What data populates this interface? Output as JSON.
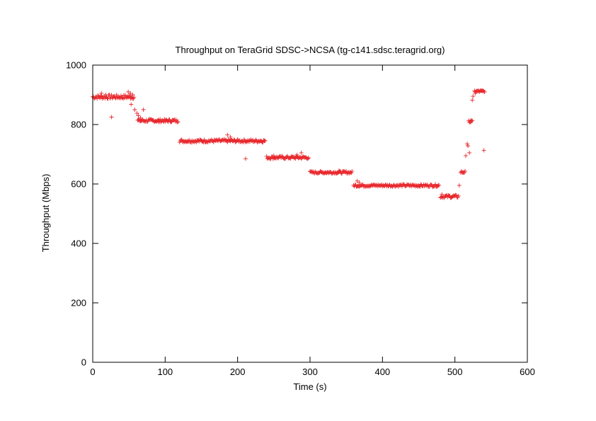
{
  "chart_data": {
    "type": "scatter",
    "title": "Throughput on TeraGrid SDSC->NCSA (tg-c141.sdsc.teragrid.org)",
    "xlabel": "Time (s)",
    "ylabel": "Throughput (Mbps)",
    "xlim": [
      0,
      600
    ],
    "ylim": [
      0,
      1000
    ],
    "xticks": [
      0,
      100,
      200,
      300,
      400,
      500,
      600
    ],
    "yticks": [
      0,
      200,
      400,
      600,
      800,
      1000
    ],
    "grid": false,
    "legend": "none",
    "marker": "+",
    "color": "#e8262b",
    "series": [
      {
        "segments": [
          {
            "x_start": 0,
            "x_end": 57,
            "step": 1,
            "y": 893,
            "jitter": 7
          },
          {
            "x_start": 62,
            "x_end": 118,
            "step": 1,
            "y": 813,
            "jitter": 5
          },
          {
            "x_start": 120,
            "x_end": 238,
            "step": 1,
            "y": 745,
            "jitter": 5
          },
          {
            "x_start": 240,
            "x_end": 298,
            "step": 1,
            "y": 689,
            "jitter": 5
          },
          {
            "x_start": 300,
            "x_end": 358,
            "step": 1,
            "y": 639,
            "jitter": 4
          },
          {
            "x_start": 360,
            "x_end": 478,
            "step": 1,
            "y": 595,
            "jitter": 4
          },
          {
            "x_start": 480,
            "x_end": 505,
            "step": 1,
            "y": 558,
            "jitter": 5
          },
          {
            "x_start": 508,
            "x_end": 514,
            "step": 1,
            "y": 640,
            "jitter": 4
          },
          {
            "x_start": 519,
            "x_end": 524,
            "step": 1,
            "y": 810,
            "jitter": 3
          },
          {
            "x_start": 527,
            "x_end": 541,
            "step": 1,
            "y": 912,
            "jitter": 3
          }
        ],
        "points": [
          [
            12,
            905
          ],
          [
            18,
            900
          ],
          [
            26,
            825
          ],
          [
            49,
            910
          ],
          [
            52,
            905
          ],
          [
            55,
            900
          ],
          [
            53,
            868
          ],
          [
            58,
            850
          ],
          [
            61,
            838
          ],
          [
            63,
            830
          ],
          [
            66,
            822
          ],
          [
            70,
            850
          ],
          [
            91,
            808
          ],
          [
            100,
            810
          ],
          [
            186,
            765
          ],
          [
            190,
            758
          ],
          [
            211,
            685
          ],
          [
            250,
            695
          ],
          [
            282,
            698
          ],
          [
            288,
            705
          ],
          [
            340,
            645
          ],
          [
            368,
            605
          ],
          [
            365,
            610
          ],
          [
            482,
            565
          ],
          [
            506,
            595
          ],
          [
            515,
            695
          ],
          [
            517,
            735
          ],
          [
            518,
            728
          ],
          [
            520,
            705
          ],
          [
            522,
            815
          ],
          [
            524,
            882
          ],
          [
            525,
            895
          ],
          [
            528,
            905
          ],
          [
            540,
            713
          ]
        ]
      }
    ]
  }
}
